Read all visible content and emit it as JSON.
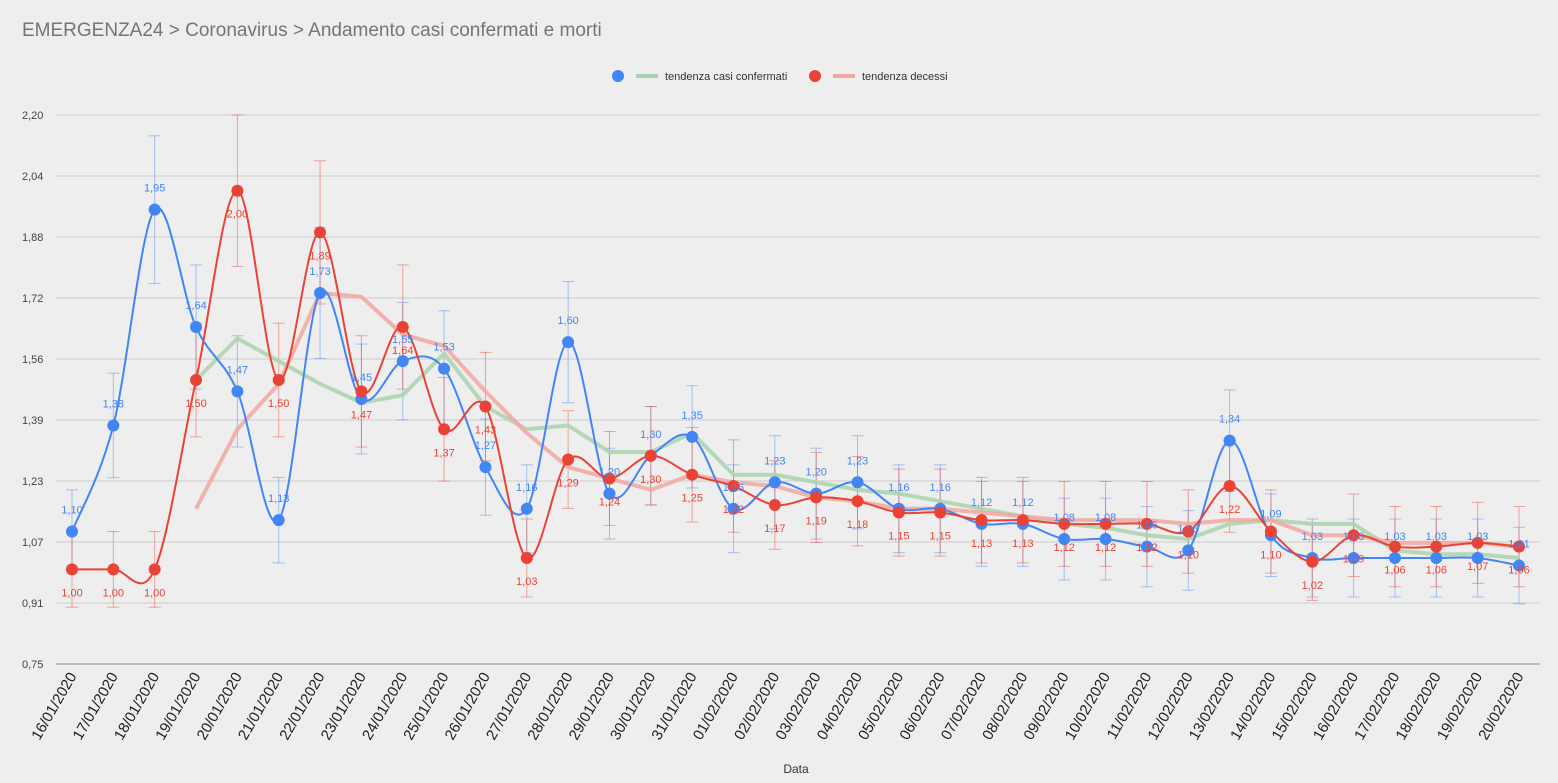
{
  "header": {
    "title": "EMERGENZA24 > Coronavirus > Andamento casi confermati e morti"
  },
  "chart_data": {
    "type": "line",
    "title": "EMERGENZA24 > Coronavirus > Andamento casi confermati e morti",
    "xlabel": "Data",
    "ylabel": "",
    "ylim": [
      0.75,
      2.2
    ],
    "yticks": [
      "0,75",
      "0,91",
      "1,07",
      "1,23",
      "1,39",
      "1,56",
      "1,72",
      "1,88",
      "2,04",
      "2,20"
    ],
    "grid": true,
    "legend_position": "top-center",
    "colors": {
      "confermati": "#4285f4",
      "decessi": "#ea4335",
      "trend_confermati": "#a9d3ab",
      "trend_decessi": "#f2a7a0",
      "grid": "#cccccc"
    },
    "legend": [
      {
        "label": "tendenza casi confermati",
        "marker_color": "#4285f4",
        "line_color": "#a9d3ab"
      },
      {
        "label": "tendenza decessi",
        "marker_color": "#ea4335",
        "line_color": "#f2a7a0"
      }
    ],
    "categories": [
      "16/01/2020",
      "17/01/2020",
      "18/01/2020",
      "19/01/2020",
      "20/01/2020",
      "21/01/2020",
      "22/01/2020",
      "23/01/2020",
      "24/01/2020",
      "25/01/2020",
      "26/01/2020",
      "27/01/2020",
      "28/01/2020",
      "29/01/2020",
      "30/01/2020",
      "31/01/2020",
      "01/02/2020",
      "02/02/2020",
      "03/02/2020",
      "04/02/2020",
      "05/02/2020",
      "06/02/2020",
      "07/02/2020",
      "08/02/2020",
      "09/02/2020",
      "10/02/2020",
      "11/02/2020",
      "12/02/2020",
      "13/02/2020",
      "14/02/2020",
      "15/02/2020",
      "16/02/2020",
      "17/02/2020",
      "18/02/2020",
      "19/02/2020",
      "20/02/2020"
    ],
    "series": [
      {
        "name": "casi confermati",
        "values": [
          1.1,
          1.38,
          1.95,
          1.64,
          1.47,
          1.13,
          1.73,
          1.45,
          1.55,
          1.53,
          1.27,
          1.16,
          1.6,
          1.2,
          1.3,
          1.35,
          1.16,
          1.23,
          1.2,
          1.23,
          1.16,
          1.16,
          1.12,
          1.12,
          1.08,
          1.08,
          1.06,
          1.05,
          1.34,
          1.09,
          1.03,
          1.03,
          1.03,
          1.03,
          1.03,
          1.01
        ],
        "labels": [
          "1,10",
          "1,38",
          "1,95",
          "1,64",
          "1,47",
          "1,13",
          "1,73",
          "1,45",
          "1,55",
          "1,53",
          "1,27",
          "1,16",
          "1,60",
          "1,20",
          "1,30",
          "1,35",
          "1,16",
          "1,23",
          "1,20",
          "1,23",
          "1,16",
          "1,16",
          "1,12",
          "1,12",
          "1,08",
          "1,08",
          "1,06",
          "1,05",
          "1,34",
          "1,09",
          "1,03",
          "1,03",
          "1,03",
          "1,03",
          "1,03",
          "1,01"
        ]
      },
      {
        "name": "decessi",
        "values": [
          1.0,
          1.0,
          1.0,
          1.5,
          2.0,
          1.5,
          1.89,
          1.47,
          1.64,
          1.37,
          1.43,
          1.03,
          1.29,
          1.24,
          1.3,
          1.25,
          1.22,
          1.17,
          1.19,
          1.18,
          1.15,
          1.15,
          1.13,
          1.13,
          1.12,
          1.12,
          1.12,
          1.1,
          1.22,
          1.1,
          1.02,
          1.09,
          1.06,
          1.06,
          1.07,
          1.06
        ],
        "labels": [
          "1,00",
          "1,00",
          "1,00",
          "1,50",
          "2,00",
          "1,50",
          "1,89",
          "1,47",
          "1,64",
          "1,37",
          "1,43",
          "1,03",
          "1,29",
          "1,24",
          "1,30",
          "1,25",
          "1,22",
          "1,17",
          "1,19",
          "1,18",
          "1,15",
          "1,15",
          "1,13",
          "1,13",
          "1,12",
          "1,12",
          "1,12",
          "1,10",
          "1,22",
          "1,10",
          "1,02",
          "1,09",
          "1,06",
          "1,06",
          "1,07",
          "1,06"
        ]
      },
      {
        "name": "tendenza casi confermati",
        "values": [
          null,
          null,
          null,
          1.5,
          1.61,
          1.55,
          1.49,
          1.44,
          1.46,
          1.57,
          1.43,
          1.37,
          1.38,
          1.31,
          1.31,
          1.36,
          1.25,
          1.25,
          1.23,
          1.21,
          1.2,
          1.18,
          1.16,
          1.14,
          1.12,
          1.11,
          1.09,
          1.08,
          1.12,
          1.13,
          1.12,
          1.12,
          1.05,
          1.04,
          1.04,
          1.03
        ]
      },
      {
        "name": "tendenza decessi",
        "values": [
          null,
          null,
          null,
          1.16,
          1.37,
          1.49,
          1.73,
          1.72,
          1.62,
          1.59,
          1.47,
          1.36,
          1.27,
          1.24,
          1.21,
          1.25,
          1.23,
          1.22,
          1.19,
          1.18,
          1.16,
          1.16,
          1.15,
          1.14,
          1.13,
          1.13,
          1.13,
          1.12,
          1.13,
          1.13,
          1.09,
          1.09,
          1.07,
          1.07,
          1.07,
          1.06
        ]
      }
    ]
  }
}
